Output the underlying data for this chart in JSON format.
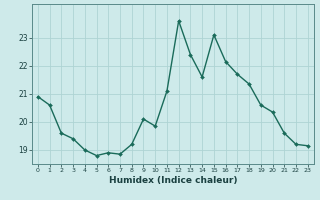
{
  "x": [
    0,
    1,
    2,
    3,
    4,
    5,
    6,
    7,
    8,
    9,
    10,
    11,
    12,
    13,
    14,
    15,
    16,
    17,
    18,
    19,
    20,
    21,
    22,
    23
  ],
  "y": [
    20.9,
    20.6,
    19.6,
    19.4,
    19.0,
    18.8,
    18.9,
    18.85,
    19.2,
    20.1,
    19.85,
    21.1,
    23.6,
    22.4,
    21.6,
    23.1,
    22.15,
    21.7,
    21.35,
    20.6,
    20.35,
    19.6,
    19.2,
    19.15
  ],
  "title": "",
  "xlabel": "Humidex (Indice chaleur)",
  "ylabel": "",
  "bg_color": "#ceeaea",
  "line_color": "#1a6b5a",
  "marker_color": "#1a6b5a",
  "grid_color": "#aed4d4",
  "ylim_min": 18.5,
  "ylim_max": 24.2,
  "yticks": [
    19,
    20,
    21,
    22,
    23
  ],
  "xticks": [
    0,
    1,
    2,
    3,
    4,
    5,
    6,
    7,
    8,
    9,
    10,
    11,
    12,
    13,
    14,
    15,
    16,
    17,
    18,
    19,
    20,
    21,
    22,
    23
  ]
}
